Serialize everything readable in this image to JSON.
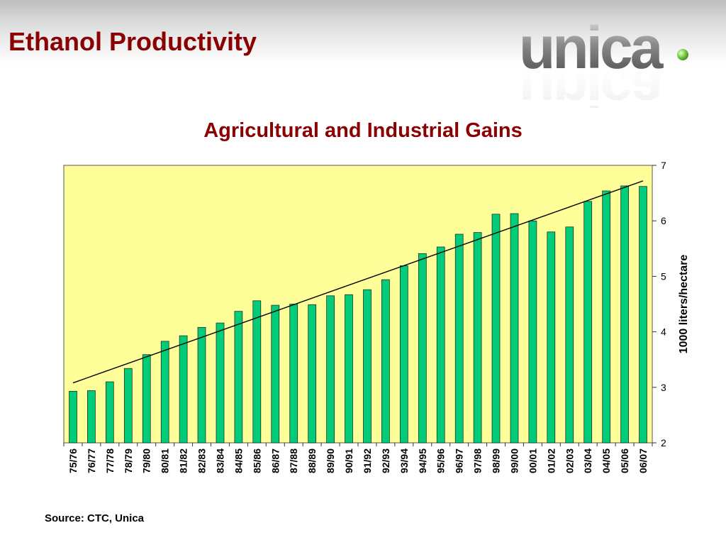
{
  "header": {
    "title": "Ethanol Productivity",
    "logo_text": "unica"
  },
  "colors": {
    "title": "#8b0000",
    "plot_background": "#ffff99",
    "bar_fill": "#00cc7a",
    "trend_line": "#000000"
  },
  "chart_data": {
    "type": "bar",
    "title": "Agricultural and Industrial Gains",
    "xlabel": "",
    "ylabel": "1000 liters/hectare",
    "y_axis_position": "right",
    "ylim": [
      2,
      7
    ],
    "yticks": [
      2,
      3,
      4,
      5,
      6,
      7
    ],
    "grid": false,
    "legend": "none",
    "categories": [
      "75/76",
      "76/77",
      "77/78",
      "78/79",
      "79/80",
      "80/81",
      "81/82",
      "82/83",
      "83/84",
      "84/85",
      "85/86",
      "86/87",
      "87/88",
      "88/89",
      "89/90",
      "90/91",
      "91/92",
      "92/93",
      "93/94",
      "94/95",
      "95/96",
      "96/97",
      "97/98",
      "98/99",
      "99/00",
      "00/01",
      "01/02",
      "02/03",
      "03/04",
      "04/05",
      "05/06",
      "06/07"
    ],
    "values": [
      2.93,
      2.94,
      3.1,
      3.34,
      3.59,
      3.83,
      3.93,
      4.08,
      4.16,
      4.37,
      4.56,
      4.48,
      4.5,
      4.49,
      4.65,
      4.67,
      4.76,
      4.94,
      5.19,
      5.41,
      5.53,
      5.76,
      5.79,
      6.12,
      6.13,
      6.0,
      5.8,
      5.89,
      6.35,
      6.54,
      6.63,
      6.62
    ],
    "trend_line": {
      "type": "linear",
      "start": 3.08,
      "end": 6.72
    }
  },
  "footer": {
    "source": "Source: CTC, Unica"
  }
}
